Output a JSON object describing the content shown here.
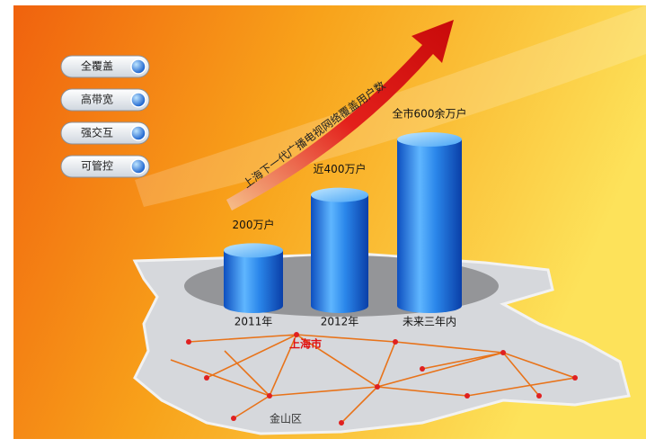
{
  "buttons": [
    "全覆盖",
    "高带宽",
    "强交互",
    "可管控"
  ],
  "chart_data": {
    "type": "bar",
    "title": "上海下一代广播电视网络覆盖用户数",
    "categories": [
      "2011年",
      "2012年",
      "未来三年内"
    ],
    "values": [
      200,
      400,
      600
    ],
    "value_labels": [
      "200万户",
      "近400万户",
      "全市600余万户"
    ],
    "color": "#1e7fe6"
  },
  "map": {
    "labels": [
      "上海市",
      "金山区"
    ]
  }
}
